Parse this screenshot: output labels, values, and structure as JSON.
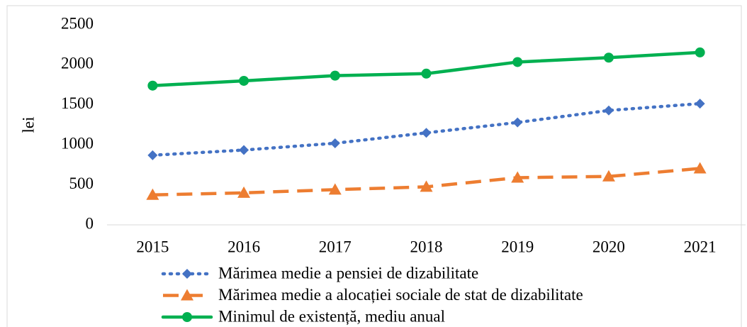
{
  "chart_data": {
    "type": "line",
    "ylabel": "lei",
    "categories": [
      "2015",
      "2016",
      "2017",
      "2018",
      "2019",
      "2020",
      "2021"
    ],
    "series": [
      {
        "name": "Mărimea medie a pensiei de dizabilitate",
        "color": "#4472c4",
        "line_style": "dotted",
        "marker": "diamond",
        "values": [
          870,
          935,
          1020,
          1150,
          1280,
          1430,
          1515
        ]
      },
      {
        "name": "Mărimea medie a alocației sociale de stat de dizabilitate",
        "color": "#ed7d31",
        "line_style": "dashed",
        "marker": "triangle",
        "values": [
          375,
          400,
          440,
          475,
          590,
          605,
          705
        ]
      },
      {
        "name": "Minimul de existență, mediu anual",
        "color": "#00b050",
        "line_style": "solid",
        "marker": "circle",
        "values": [
          1740,
          1800,
          1865,
          1890,
          2035,
          2090,
          2155
        ]
      }
    ],
    "ylim": [
      0,
      2500
    ],
    "yticks": [
      0,
      500,
      1000,
      1500,
      2000,
      2500
    ],
    "grid": false,
    "legend": "bottom"
  }
}
